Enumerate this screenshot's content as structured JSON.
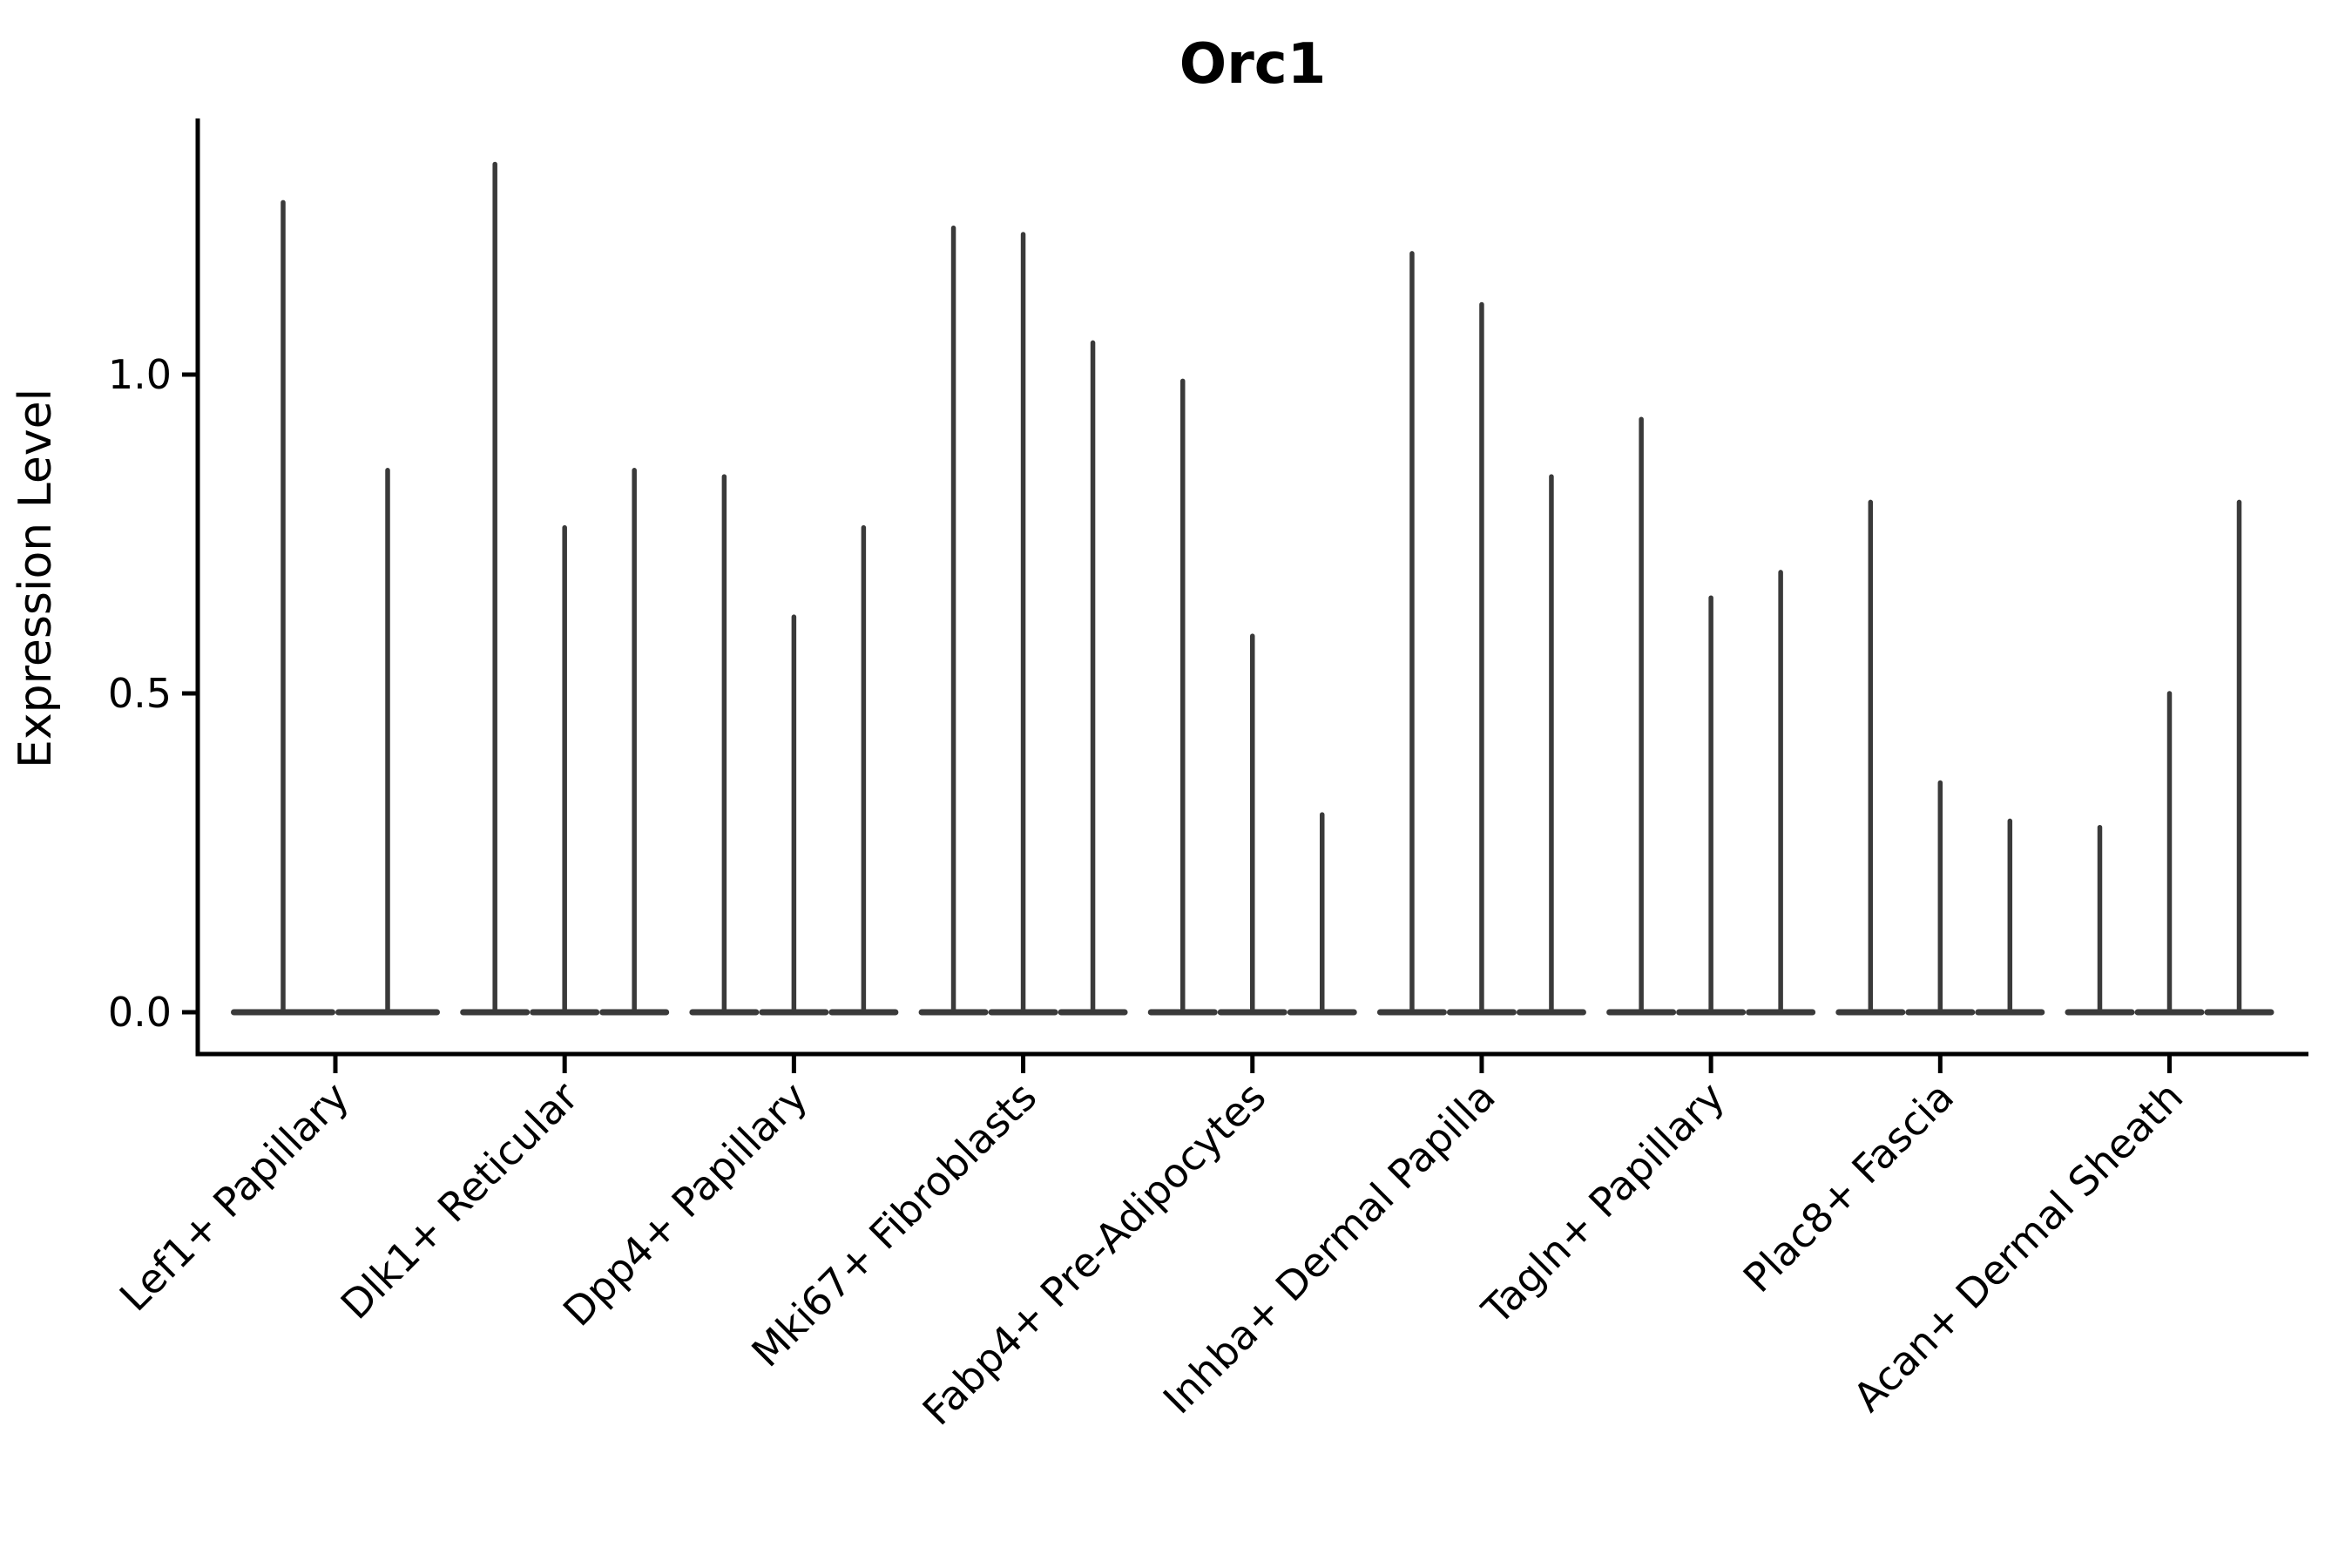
{
  "figure": {
    "background": "#ffffff"
  },
  "chart_data": {
    "type": "violin",
    "title": "Orc1",
    "xlabel": "",
    "ylabel": "Expression Level",
    "categories": [
      "Lef1+ Papillary",
      "Dlk1+ Reticular",
      "Dpp4+ Papillary",
      "Mki67+ Fibroblasts",
      "Fabp4+ Pre-Adipocytes",
      "Inhba+ Dermal Papilla",
      "Tagln+ Papillary",
      "Plac8+ Fascia",
      "Acan+ Dermal Sheath"
    ],
    "series": [
      {
        "category": "Lef1+ Papillary",
        "violin_baseline": 0.0,
        "violin_maxima": [
          1.27,
          0.85
        ]
      },
      {
        "category": "Dlk1+ Reticular",
        "violin_baseline": 0.0,
        "violin_maxima": [
          1.33,
          0.76,
          0.85
        ]
      },
      {
        "category": "Dpp4+ Papillary",
        "violin_baseline": 0.0,
        "violin_maxima": [
          0.84,
          0.62,
          0.76
        ]
      },
      {
        "category": "Mki67+ Fibroblasts",
        "violin_baseline": 0.0,
        "violin_maxima": [
          1.23,
          1.22,
          1.05
        ]
      },
      {
        "category": "Fabp4+ Pre-Adipocytes",
        "violin_baseline": 0.0,
        "violin_maxima": [
          0.99,
          0.59,
          0.31
        ]
      },
      {
        "category": "Inhba+ Dermal Papilla",
        "violin_baseline": 0.0,
        "violin_maxima": [
          1.19,
          1.11,
          0.84
        ]
      },
      {
        "category": "Tagln+ Papillary",
        "violin_baseline": 0.0,
        "violin_maxima": [
          0.93,
          0.65,
          0.69
        ]
      },
      {
        "category": "Plac8+ Fascia",
        "violin_baseline": 0.0,
        "violin_maxima": [
          0.8,
          0.36,
          0.3
        ]
      },
      {
        "category": "Acan+ Dermal Sheath",
        "violin_baseline": 0.0,
        "violin_maxima": [
          0.29,
          0.5,
          0.8
        ]
      }
    ],
    "ytick_labels": [
      "0.0",
      "0.5",
      "1.0"
    ],
    "ytick_values": [
      0.0,
      0.5,
      1.0
    ],
    "ylim": [
      -0.066,
      1.402
    ],
    "grid": false,
    "legend": null,
    "colors": {
      "violin": "#3a3a3a",
      "axis": "#000000",
      "text": "#000000"
    }
  }
}
